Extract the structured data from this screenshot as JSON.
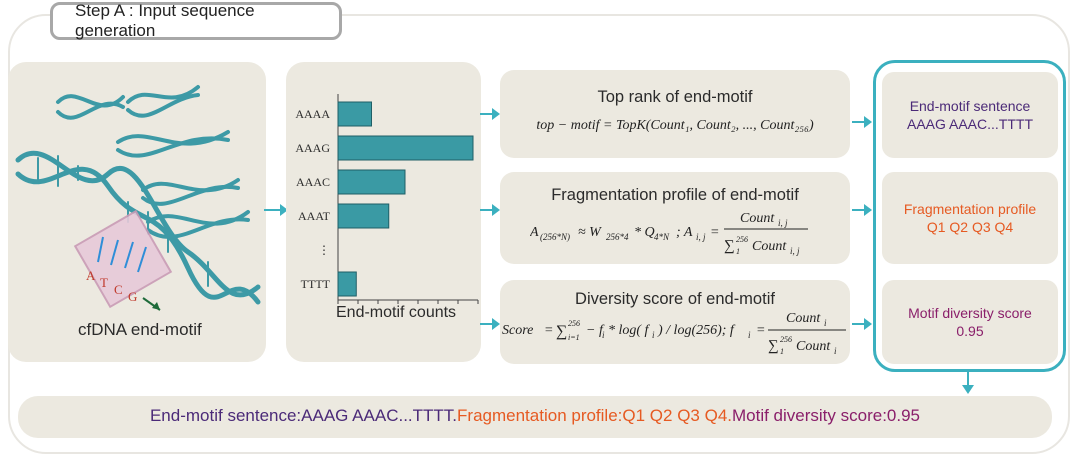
{
  "step": {
    "label": "Step A : Input sequence generation"
  },
  "dna": {
    "caption": "cfDNA end-motif",
    "bases": [
      "A",
      "T",
      "C",
      "G"
    ]
  },
  "chart_data": {
    "type": "bar",
    "orientation": "horizontal",
    "categories": [
      "AAAA",
      "AAAG",
      "AAAC",
      "AAAT",
      "⋮",
      "TTTT"
    ],
    "values": [
      33,
      133,
      66,
      50,
      null,
      18
    ],
    "xlabel": "End-motif counts",
    "bar_color": "#3a9aa4"
  },
  "top_rank": {
    "title": "Top rank of end-motif",
    "formula": "top − motif = TopK(Count₁, Count₂, ..., Count₂₅₆)"
  },
  "frag": {
    "title": "Fragmentation profile of end-motif"
  },
  "diversity": {
    "title": "Diversity score of end-motif"
  },
  "right": {
    "sentence_title": "End-motif sentence",
    "sentence_value": "AAAG AAAC...TTTT",
    "frag_title": "Fragmentation profile",
    "frag_value": "Q1 Q2 Q3 Q4",
    "div_title": "Motif diversity score",
    "div_value": "0.95"
  },
  "bottom": {
    "part1": "End-motif sentence:AAAG AAAC...TTTT.",
    "part2": "Fragmentation profile:Q1 Q2 Q3 Q4.",
    "part3": "Motif diversity score:0.95"
  },
  "colors": {
    "teal": "#3bb0bf",
    "purple": "#4b2a78",
    "orange": "#e65a22",
    "magenta": "#8a1f6a"
  }
}
